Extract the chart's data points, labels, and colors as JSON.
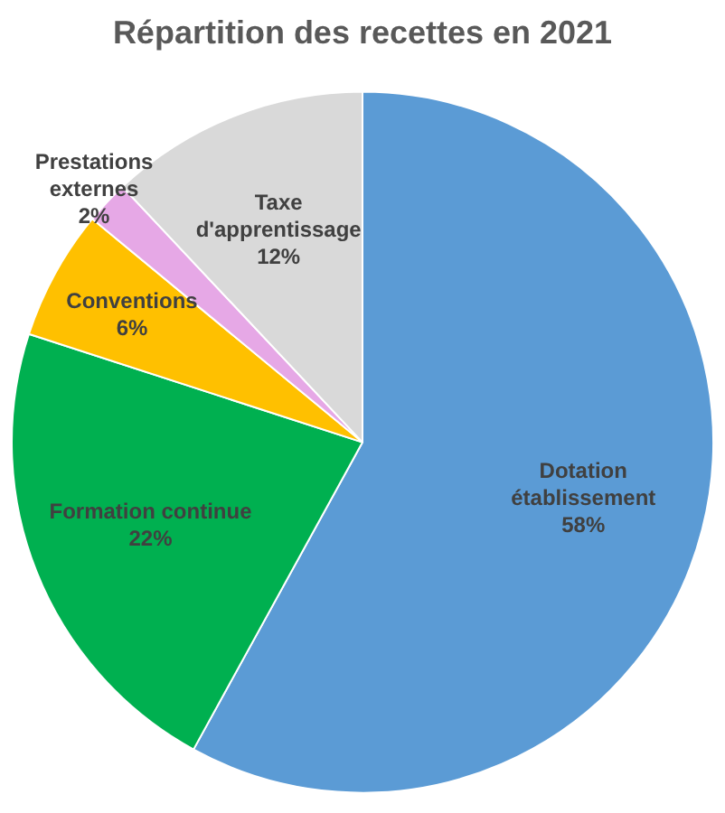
{
  "chart_data": {
    "type": "pie",
    "title": "Répartition des recettes en 2021",
    "categories": [
      "Dotation établissement",
      "Formation continue",
      "Conventions",
      "Prestations externes",
      "Taxe d'apprentissage"
    ],
    "values": [
      58,
      22,
      6,
      2,
      12
    ],
    "colors": [
      "#5b9bd5",
      "#00b050",
      "#ffc000",
      "#e6a8e6",
      "#d9d9d9"
    ],
    "value_labels": [
      "58%",
      "22%",
      "6%",
      "2%",
      "12%"
    ]
  }
}
